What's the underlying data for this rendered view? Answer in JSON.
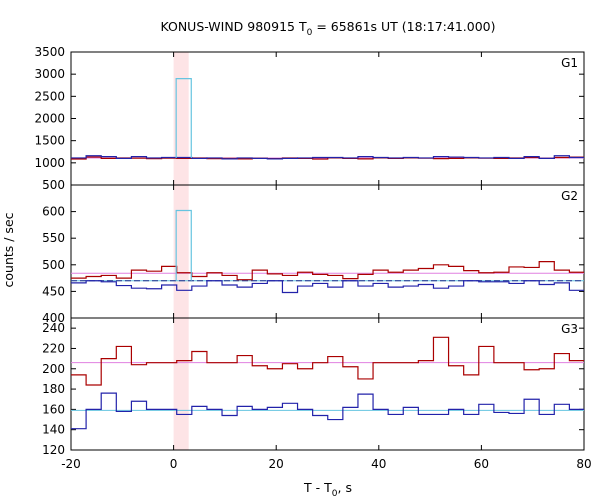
{
  "chart_data": {
    "type": "line",
    "title_main": "KONUS-WIND 980915 T",
    "title_sub": "0",
    "title_rest": " = 65861s UT (18:17:41.000)",
    "xlabel_main": "T - T",
    "xlabel_sub": "0",
    "xlabel_rest": ", s",
    "ylabel": "counts / sec",
    "xlim": [
      -20,
      80
    ],
    "xticks": [
      -20,
      0,
      20,
      40,
      60,
      80
    ],
    "shade_interval": [
      0,
      2.944
    ],
    "colors": {
      "red": "#aa0000",
      "blue": "#2222aa",
      "cyan": "#66c4e0",
      "pink": "#e080e0",
      "shade": "#fde4e6",
      "bg_dash": "#1a2b8a"
    },
    "panels": [
      {
        "name": "G1",
        "ylim": [
          500,
          3500
        ],
        "yticks": [
          500,
          1000,
          1500,
          2000,
          2500,
          3000,
          3500
        ],
        "series": [
          {
            "name": "red",
            "x_start": -20,
            "step": 2.944,
            "values": [
              1085,
              1130,
              1100,
              1110,
              1105,
              1095,
              1105,
              1100,
              1110,
              1095,
              1100,
              1090,
              1105,
              1095,
              1110,
              1100,
              1085,
              1110,
              1100,
              1090,
              1110,
              1100,
              1110,
              1105,
              1095,
              1100,
              1110,
              1105,
              1100,
              1110,
              1120,
              1100,
              1120,
              1130
            ]
          },
          {
            "name": "blue",
            "x_start": -20,
            "step": 2.944,
            "values": [
              1110,
              1160,
              1140,
              1100,
              1140,
              1110,
              1120,
              1120,
              1100,
              1110,
              1090,
              1110,
              1100,
              1090,
              1100,
              1110,
              1120,
              1120,
              1110,
              1140,
              1120,
              1110,
              1120,
              1110,
              1140,
              1130,
              1120,
              1110,
              1120,
              1100,
              1140,
              1100,
              1160,
              1120
            ]
          },
          {
            "name": "cyan",
            "x_start": 0.5,
            "step": 2.944,
            "values": [
              2900
            ]
          }
        ],
        "bg_lines": [
          {
            "color": "cyan",
            "value": 1110
          },
          {
            "color": "pink",
            "value": 1110
          }
        ]
      },
      {
        "name": "G2",
        "ylim": [
          400,
          650
        ],
        "yticks": [
          400,
          450,
          500,
          550,
          600
        ],
        "series": [
          {
            "name": "red",
            "x_start": -20,
            "step": 2.944,
            "values": [
              475,
              478,
              480,
              475,
              490,
              488,
              497,
              485,
              478,
              485,
              480,
              472,
              490,
              483,
              480,
              486,
              482,
              480,
              474,
              482,
              490,
              486,
              490,
              493,
              500,
              497,
              489,
              485,
              486,
              496,
              495,
              506,
              490,
              486
            ]
          },
          {
            "name": "blue",
            "x_start": -20,
            "step": 2.944,
            "values": [
              466,
              470,
              468,
              461,
              456,
              455,
              462,
              452,
              460,
              470,
              462,
              458,
              465,
              470,
              448,
              460,
              465,
              458,
              470,
              460,
              465,
              458,
              460,
              463,
              456,
              460,
              470,
              468,
              468,
              465,
              470,
              463,
              466,
              452
            ]
          },
          {
            "name": "cyan",
            "x_start": 0.5,
            "step": 2.944,
            "values": [
              602
            ]
          }
        ],
        "bg_lines": [
          {
            "color": "cyan",
            "value": 470
          },
          {
            "color": "pink",
            "value": 484
          },
          {
            "color": "bg_dash",
            "value": 470
          }
        ]
      },
      {
        "name": "G3",
        "ylim": [
          120,
          250
        ],
        "yticks": [
          120,
          140,
          160,
          180,
          200,
          220,
          240
        ],
        "series": [
          {
            "name": "red",
            "x_start": -20,
            "step": 2.944,
            "values": [
              194,
              184,
              210,
              222,
              204,
              206,
              206,
              208,
              217,
              206,
              206,
              213,
              203,
              200,
              205,
              200,
              206,
              212,
              202,
              190,
              206,
              206,
              206,
              208,
              231,
              203,
              194,
              222,
              206,
              206,
              199,
              200,
              215,
              208
            ]
          },
          {
            "name": "blue",
            "x_start": -20,
            "step": 2.944,
            "values": [
              141,
              160,
              176,
              158,
              168,
              160,
              160,
              155,
              163,
              160,
              154,
              163,
              160,
              162,
              166,
              160,
              154,
              150,
              162,
              175,
              160,
              155,
              162,
              155,
              155,
              160,
              155,
              165,
              157,
              156,
              170,
              155,
              165,
              160
            ]
          }
        ],
        "bg_lines": [
          {
            "color": "pink",
            "value": 206
          },
          {
            "color": "cyan",
            "value": 159
          }
        ]
      }
    ]
  }
}
